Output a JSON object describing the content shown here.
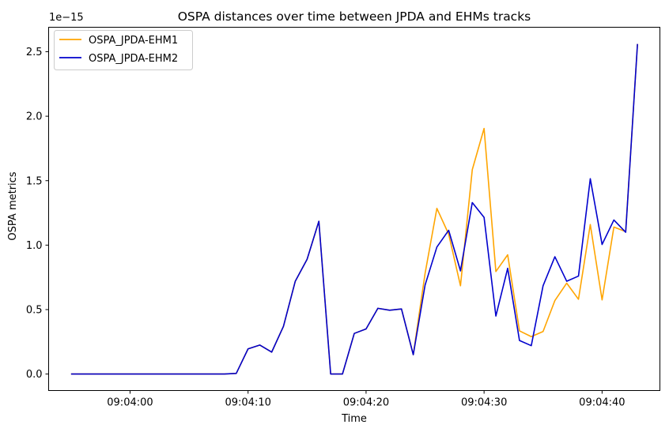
{
  "chart_data": {
    "type": "line",
    "title": "OSPA distances over time between JPDA and EHMs tracks",
    "xlabel": "Time",
    "ylabel": "OSPA metrics",
    "y_offset_label": "1e−15",
    "y_scale": 1e-15,
    "x_ticks": [
      "09:04:00",
      "09:04:10",
      "09:04:20",
      "09:04:30",
      "09:04:40"
    ],
    "y_ticks": [
      "0.0",
      "0.5",
      "1.0",
      "1.5",
      "2.0",
      "2.5"
    ],
    "xlim": [
      "09:03:53.1",
      "09:04:44.9"
    ],
    "ylim": [
      -0.128,
      2.69
    ],
    "grid": false,
    "legend_position": "top-left",
    "series": [
      {
        "name": "OSPA_JPDA-EHM1",
        "color": "#FFA500",
        "x": [
          "09:03:55",
          "09:03:56",
          "09:03:57",
          "09:03:58",
          "09:03:59",
          "09:04:00",
          "09:04:01",
          "09:04:02",
          "09:04:03",
          "09:04:04",
          "09:04:05",
          "09:04:06",
          "09:04:07",
          "09:04:08",
          "09:04:09",
          "09:04:10",
          "09:04:11",
          "09:04:12",
          "09:04:13",
          "09:04:14",
          "09:04:15",
          "09:04:16",
          "09:04:17",
          "09:04:18",
          "09:04:19",
          "09:04:20",
          "09:04:21",
          "09:04:22",
          "09:04:23",
          "09:04:24",
          "09:04:25",
          "09:04:26",
          "09:04:27",
          "09:04:28",
          "09:04:29",
          "09:04:30",
          "09:04:31",
          "09:04:32",
          "09:04:33",
          "09:04:34",
          "09:04:35",
          "09:04:36",
          "09:04:37",
          "09:04:38",
          "09:04:39",
          "09:04:40",
          "09:04:41",
          "09:04:42",
          "09:04:43"
        ],
        "values": [
          0,
          0,
          0,
          0,
          0,
          0,
          0,
          0,
          0,
          0,
          0,
          0,
          0,
          0,
          0.005,
          0.195,
          0.225,
          0.17,
          0.37,
          0.72,
          0.89,
          1.185,
          0,
          0,
          0.315,
          0.35,
          0.51,
          0.495,
          0.505,
          0.15,
          0.78,
          1.285,
          1.085,
          0.685,
          1.585,
          1.905,
          0.795,
          0.925,
          0.335,
          0.29,
          0.33,
          0.57,
          0.705,
          0.58,
          1.16,
          0.575,
          1.14,
          1.105,
          2.56
        ]
      },
      {
        "name": "OSPA_JPDA-EHM2",
        "color": "#0000CD",
        "x": [
          "09:03:55",
          "09:03:56",
          "09:03:57",
          "09:03:58",
          "09:03:59",
          "09:04:00",
          "09:04:01",
          "09:04:02",
          "09:04:03",
          "09:04:04",
          "09:04:05",
          "09:04:06",
          "09:04:07",
          "09:04:08",
          "09:04:09",
          "09:04:10",
          "09:04:11",
          "09:04:12",
          "09:04:13",
          "09:04:14",
          "09:04:15",
          "09:04:16",
          "09:04:17",
          "09:04:18",
          "09:04:19",
          "09:04:20",
          "09:04:21",
          "09:04:22",
          "09:04:23",
          "09:04:24",
          "09:04:25",
          "09:04:26",
          "09:04:27",
          "09:04:28",
          "09:04:29",
          "09:04:30",
          "09:04:31",
          "09:04:32",
          "09:04:33",
          "09:04:34",
          "09:04:35",
          "09:04:36",
          "09:04:37",
          "09:04:38",
          "09:04:39",
          "09:04:40",
          "09:04:41",
          "09:04:42",
          "09:04:43"
        ],
        "values": [
          0,
          0,
          0,
          0,
          0,
          0,
          0,
          0,
          0,
          0,
          0,
          0,
          0,
          0,
          0.005,
          0.195,
          0.225,
          0.17,
          0.37,
          0.72,
          0.89,
          1.185,
          0,
          0,
          0.315,
          0.35,
          0.51,
          0.495,
          0.505,
          0.15,
          0.69,
          0.985,
          1.115,
          0.8,
          1.33,
          1.215,
          0.45,
          0.82,
          0.26,
          0.22,
          0.685,
          0.91,
          0.72,
          0.76,
          1.515,
          1.005,
          1.195,
          1.1,
          2.56
        ]
      }
    ]
  }
}
